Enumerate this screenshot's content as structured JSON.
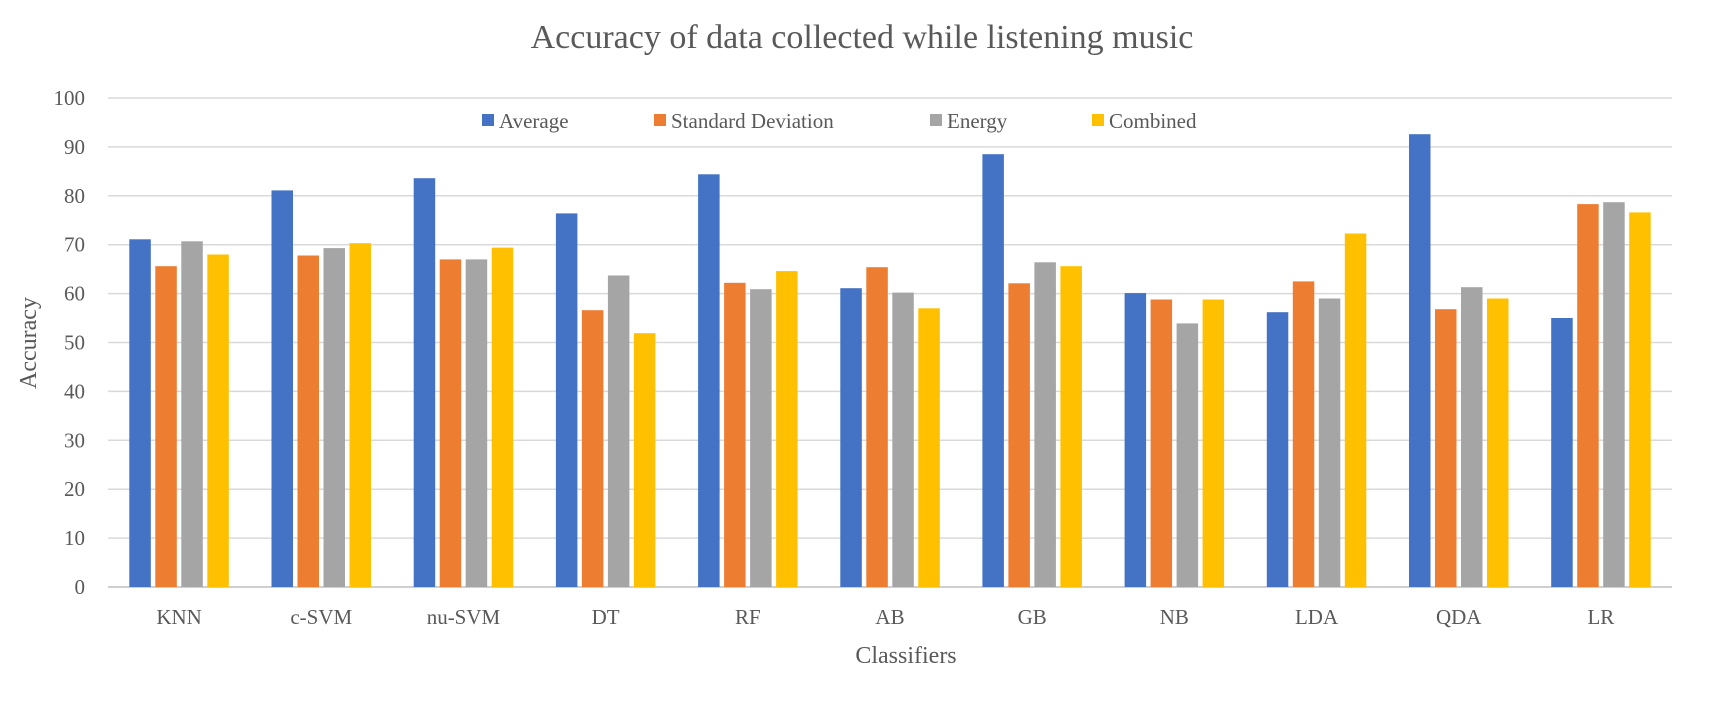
{
  "chart_data": {
    "type": "bar",
    "title": "Accuracy of data collected while listening music",
    "xlabel": "Classifiers",
    "ylabel": "Accuracy",
    "ylim": [
      0,
      100
    ],
    "yticks": [
      0,
      10,
      20,
      30,
      40,
      50,
      60,
      70,
      80,
      90,
      100
    ],
    "grid": true,
    "legend_position": "top",
    "categories": [
      "KNN",
      "c-SVM",
      "nu-SVM",
      "DT",
      "RF",
      "AB",
      "GB",
      "NB",
      "LDA",
      "QDA",
      "LR"
    ],
    "series": [
      {
        "name": "Average",
        "color": "#4472c4",
        "values": [
          71.1,
          81.1,
          83.6,
          76.4,
          84.4,
          61.1,
          88.5,
          60.1,
          56.2,
          92.6,
          55.0
        ]
      },
      {
        "name": "Standard Deviation",
        "color": "#ed7d31",
        "values": [
          65.6,
          67.8,
          67.0,
          56.6,
          62.2,
          65.4,
          62.1,
          58.8,
          62.5,
          56.8,
          78.3
        ]
      },
      {
        "name": "Energy",
        "color": "#a5a5a5",
        "values": [
          70.7,
          69.3,
          67.0,
          63.7,
          60.9,
          60.2,
          66.4,
          53.9,
          59.0,
          61.3,
          78.7
        ]
      },
      {
        "name": "Combined",
        "color": "#ffc000",
        "values": [
          68.0,
          70.3,
          69.4,
          51.9,
          64.6,
          57.0,
          65.6,
          58.8,
          72.3,
          59.0,
          76.6
        ]
      }
    ]
  }
}
